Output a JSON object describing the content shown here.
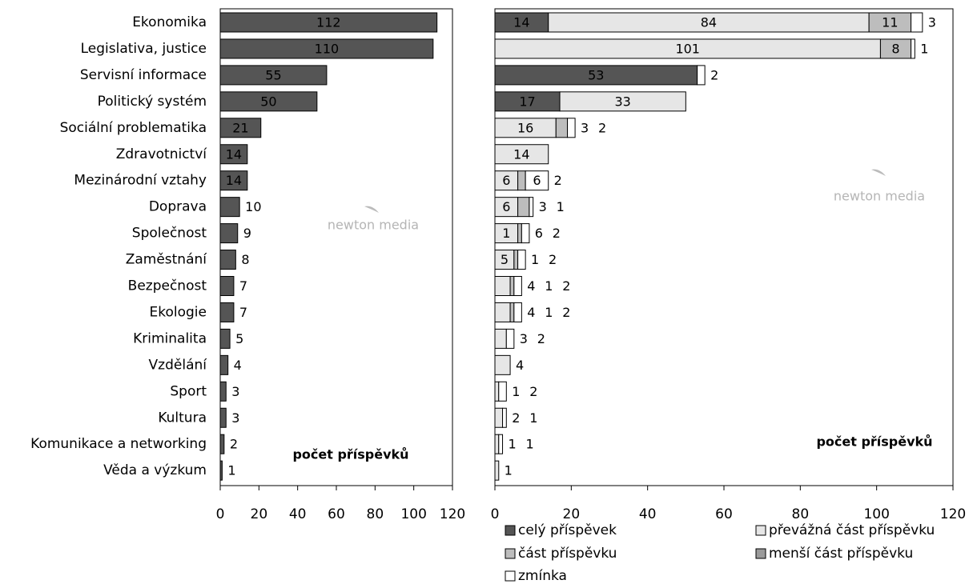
{
  "chart_data": [
    {
      "type": "bar",
      "orientation": "horizontal",
      "categories": [
        "Ekonomika",
        "Legislativa, justice",
        "Servisní informace",
        "Politický systém",
        "Sociální problematika",
        "Zdravotnictví",
        "Mezinárodní vztahy",
        "Doprava",
        "Společnost",
        "Zaměstnání",
        "Bezpečnost",
        "Ekologie",
        "Kriminalita",
        "Vzdělání",
        "Sport",
        "Kultura",
        "Komunikace a networking",
        "Věda a výzkum"
      ],
      "values": [
        112,
        110,
        55,
        50,
        21,
        14,
        14,
        10,
        9,
        8,
        7,
        7,
        5,
        4,
        3,
        3,
        2,
        1
      ],
      "title": "počet příspěvků",
      "xlim": [
        0,
        120
      ],
      "xticks": [
        "0",
        "20",
        "40",
        "60",
        "80",
        "100",
        "120"
      ],
      "watermark": "newton media"
    },
    {
      "type": "bar",
      "orientation": "horizontal",
      "stacked": true,
      "title": "počet příspěvků",
      "xlim": [
        0,
        120
      ],
      "xticks": [
        "0",
        "20",
        "40",
        "60",
        "80",
        "100",
        "120"
      ],
      "watermark": "newton media",
      "legend_position": "bottom",
      "series": [
        {
          "name": "celý příspěvek",
          "color": "#555555",
          "values": [
            14,
            0,
            53,
            17,
            0,
            0,
            0,
            0,
            0,
            0,
            0,
            0,
            0,
            0,
            0,
            0,
            0,
            0
          ]
        },
        {
          "name": "převážná část příspěvku",
          "color": "#e6e6e6",
          "values": [
            84,
            101,
            0,
            33,
            16,
            14,
            6,
            6,
            6,
            5,
            4,
            4,
            3,
            4,
            1,
            2,
            1,
            1
          ]
        },
        {
          "name": "část příspěvku",
          "color": "#bdbdbd",
          "values": [
            11,
            8,
            0,
            0,
            3,
            0,
            2,
            3,
            1,
            1,
            1,
            1,
            0,
            0,
            0,
            0,
            0,
            0
          ]
        },
        {
          "name": "menší část příspěvku",
          "color": "#9a9a9a",
          "values": [
            0,
            0,
            0,
            0,
            0,
            0,
            0,
            0,
            0,
            0,
            0,
            0,
            0,
            0,
            0,
            0,
            0,
            0
          ]
        },
        {
          "name": "zmínka",
          "color": "#ffffff",
          "values": [
            3,
            1,
            2,
            0,
            2,
            0,
            6,
            1,
            2,
            2,
            2,
            2,
            2,
            0,
            2,
            1,
            1,
            0
          ]
        }
      ],
      "labels": [
        [
          "14",
          "84",
          "11",
          "3"
        ],
        [
          "101",
          "8",
          "1"
        ],
        [
          "53",
          "2"
        ],
        [
          "17",
          "33"
        ],
        [
          "16",
          "3",
          "2"
        ],
        [
          "14"
        ],
        [
          "6",
          "2",
          "6"
        ],
        [
          "6",
          "3",
          "1"
        ],
        [
          "1",
          "6",
          "2"
        ],
        [
          "5",
          "1",
          "2"
        ],
        [
          "4",
          "1",
          "2"
        ],
        [
          "4",
          "1",
          "2"
        ],
        [
          "3",
          "2"
        ],
        [
          "4"
        ],
        [
          "1",
          "2"
        ],
        [
          "2",
          "1"
        ],
        [
          "1",
          "1"
        ],
        [
          "1"
        ]
      ]
    }
  ]
}
